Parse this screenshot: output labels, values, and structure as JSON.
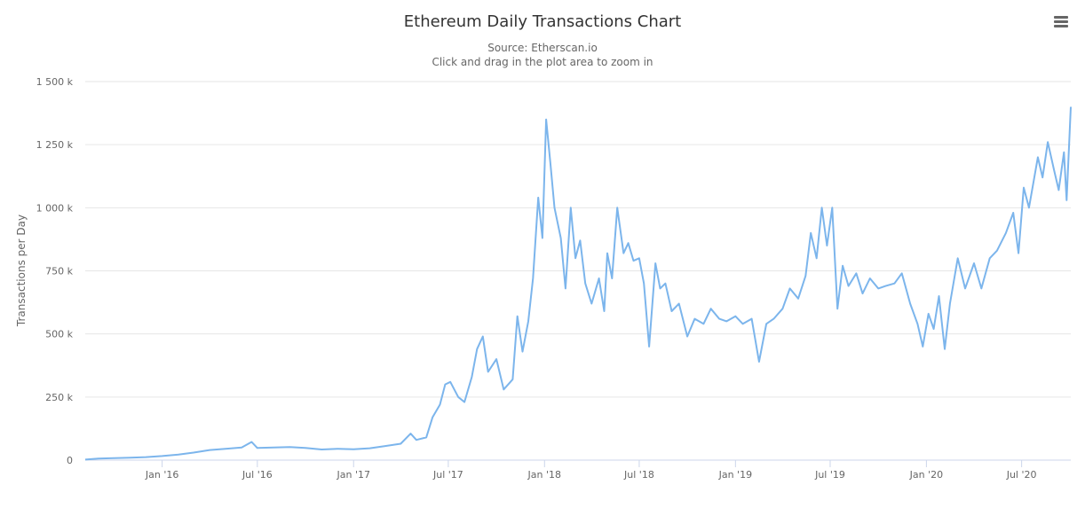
{
  "chart_data": {
    "type": "line",
    "title": "Ethereum Daily Transactions Chart",
    "subtitle": "Source: Etherscan.io",
    "subtitle2": "Click and drag in the plot area to zoom in",
    "xlabel": "",
    "ylabel": "Transactions per Day",
    "ylim": [
      0,
      1500000
    ],
    "xlim": [
      "2015-08-07",
      "2020-10-03"
    ],
    "grid": true,
    "legend": "none",
    "line_color": "#7cb5ec",
    "y_ticks": [
      {
        "value": 0,
        "label": "0"
      },
      {
        "value": 250000,
        "label": "250 k"
      },
      {
        "value": 500000,
        "label": "500 k"
      },
      {
        "value": 750000,
        "label": "750 k"
      },
      {
        "value": 1000000,
        "label": "1 000 k"
      },
      {
        "value": 1250000,
        "label": "1 250 k"
      },
      {
        "value": 1500000,
        "label": "1 500 k"
      }
    ],
    "x_ticks": [
      {
        "date": "2016-01-01",
        "label": "Jan '16"
      },
      {
        "date": "2016-07-01",
        "label": "Jul '16"
      },
      {
        "date": "2017-01-01",
        "label": "Jan '17"
      },
      {
        "date": "2017-07-01",
        "label": "Jul '17"
      },
      {
        "date": "2018-01-01",
        "label": "Jan '18"
      },
      {
        "date": "2018-07-01",
        "label": "Jul '18"
      },
      {
        "date": "2019-01-01",
        "label": "Jan '19"
      },
      {
        "date": "2019-07-01",
        "label": "Jul '19"
      },
      {
        "date": "2020-01-01",
        "label": "Jan '20"
      },
      {
        "date": "2020-07-01",
        "label": "Jul '20"
      }
    ],
    "series": [
      {
        "name": "",
        "points": [
          [
            "2015-08-07",
            2000
          ],
          [
            "2015-09-01",
            6000
          ],
          [
            "2015-10-01",
            8000
          ],
          [
            "2015-11-01",
            10000
          ],
          [
            "2015-12-01",
            12000
          ],
          [
            "2016-01-01",
            16000
          ],
          [
            "2016-02-01",
            22000
          ],
          [
            "2016-03-01",
            30000
          ],
          [
            "2016-04-01",
            40000
          ],
          [
            "2016-05-01",
            45000
          ],
          [
            "2016-06-01",
            50000
          ],
          [
            "2016-06-20",
            72000
          ],
          [
            "2016-07-01",
            48000
          ],
          [
            "2016-08-01",
            50000
          ],
          [
            "2016-09-01",
            52000
          ],
          [
            "2016-10-01",
            48000
          ],
          [
            "2016-11-01",
            42000
          ],
          [
            "2016-12-01",
            45000
          ],
          [
            "2017-01-01",
            43000
          ],
          [
            "2017-02-01",
            47000
          ],
          [
            "2017-03-01",
            55000
          ],
          [
            "2017-04-01",
            65000
          ],
          [
            "2017-04-20",
            105000
          ],
          [
            "2017-05-01",
            80000
          ],
          [
            "2017-05-20",
            90000
          ],
          [
            "2017-06-01",
            170000
          ],
          [
            "2017-06-15",
            220000
          ],
          [
            "2017-06-25",
            300000
          ],
          [
            "2017-07-05",
            310000
          ],
          [
            "2017-07-20",
            250000
          ],
          [
            "2017-08-01",
            230000
          ],
          [
            "2017-08-15",
            330000
          ],
          [
            "2017-08-25",
            440000
          ],
          [
            "2017-09-05",
            490000
          ],
          [
            "2017-09-15",
            350000
          ],
          [
            "2017-10-01",
            400000
          ],
          [
            "2017-10-15",
            280000
          ],
          [
            "2017-11-01",
            320000
          ],
          [
            "2017-11-10",
            570000
          ],
          [
            "2017-11-20",
            430000
          ],
          [
            "2017-12-01",
            550000
          ],
          [
            "2017-12-10",
            720000
          ],
          [
            "2017-12-20",
            1040000
          ],
          [
            "2017-12-28",
            880000
          ],
          [
            "2018-01-04",
            1350000
          ],
          [
            "2018-01-12",
            1180000
          ],
          [
            "2018-01-20",
            1000000
          ],
          [
            "2018-02-01",
            880000
          ],
          [
            "2018-02-10",
            680000
          ],
          [
            "2018-02-20",
            1000000
          ],
          [
            "2018-03-01",
            800000
          ],
          [
            "2018-03-10",
            870000
          ],
          [
            "2018-03-20",
            700000
          ],
          [
            "2018-04-01",
            620000
          ],
          [
            "2018-04-15",
            720000
          ],
          [
            "2018-04-25",
            590000
          ],
          [
            "2018-05-01",
            820000
          ],
          [
            "2018-05-10",
            720000
          ],
          [
            "2018-05-20",
            1000000
          ],
          [
            "2018-06-01",
            820000
          ],
          [
            "2018-06-10",
            860000
          ],
          [
            "2018-06-20",
            790000
          ],
          [
            "2018-07-01",
            800000
          ],
          [
            "2018-07-10",
            700000
          ],
          [
            "2018-07-20",
            450000
          ],
          [
            "2018-08-01",
            780000
          ],
          [
            "2018-08-10",
            680000
          ],
          [
            "2018-08-20",
            700000
          ],
          [
            "2018-09-01",
            590000
          ],
          [
            "2018-09-15",
            620000
          ],
          [
            "2018-10-01",
            490000
          ],
          [
            "2018-10-15",
            560000
          ],
          [
            "2018-11-01",
            540000
          ],
          [
            "2018-11-15",
            600000
          ],
          [
            "2018-12-01",
            560000
          ],
          [
            "2018-12-15",
            550000
          ],
          [
            "2019-01-01",
            570000
          ],
          [
            "2019-01-15",
            540000
          ],
          [
            "2019-02-01",
            560000
          ],
          [
            "2019-02-15",
            390000
          ],
          [
            "2019-03-01",
            540000
          ],
          [
            "2019-03-15",
            560000
          ],
          [
            "2019-04-01",
            600000
          ],
          [
            "2019-04-15",
            680000
          ],
          [
            "2019-05-01",
            640000
          ],
          [
            "2019-05-15",
            730000
          ],
          [
            "2019-05-25",
            900000
          ],
          [
            "2019-06-05",
            800000
          ],
          [
            "2019-06-15",
            1000000
          ],
          [
            "2019-06-25",
            850000
          ],
          [
            "2019-07-05",
            1000000
          ],
          [
            "2019-07-15",
            600000
          ],
          [
            "2019-07-25",
            770000
          ],
          [
            "2019-08-05",
            690000
          ],
          [
            "2019-08-20",
            740000
          ],
          [
            "2019-09-01",
            660000
          ],
          [
            "2019-09-15",
            720000
          ],
          [
            "2019-10-01",
            680000
          ],
          [
            "2019-10-15",
            690000
          ],
          [
            "2019-11-01",
            700000
          ],
          [
            "2019-11-15",
            740000
          ],
          [
            "2019-12-01",
            620000
          ],
          [
            "2019-12-15",
            540000
          ],
          [
            "2019-12-25",
            450000
          ],
          [
            "2020-01-05",
            580000
          ],
          [
            "2020-01-15",
            520000
          ],
          [
            "2020-01-25",
            650000
          ],
          [
            "2020-02-05",
            440000
          ],
          [
            "2020-02-15",
            620000
          ],
          [
            "2020-03-01",
            800000
          ],
          [
            "2020-03-15",
            680000
          ],
          [
            "2020-04-01",
            780000
          ],
          [
            "2020-04-15",
            680000
          ],
          [
            "2020-05-01",
            800000
          ],
          [
            "2020-05-15",
            830000
          ],
          [
            "2020-06-01",
            900000
          ],
          [
            "2020-06-15",
            980000
          ],
          [
            "2020-06-25",
            820000
          ],
          [
            "2020-07-05",
            1080000
          ],
          [
            "2020-07-15",
            1000000
          ],
          [
            "2020-08-01",
            1200000
          ],
          [
            "2020-08-10",
            1120000
          ],
          [
            "2020-08-20",
            1260000
          ],
          [
            "2020-09-01",
            1150000
          ],
          [
            "2020-09-10",
            1070000
          ],
          [
            "2020-09-20",
            1220000
          ],
          [
            "2020-09-25",
            1030000
          ],
          [
            "2020-10-03",
            1400000
          ]
        ]
      }
    ]
  },
  "ui": {
    "menu_icon": "hamburger-menu-icon"
  }
}
